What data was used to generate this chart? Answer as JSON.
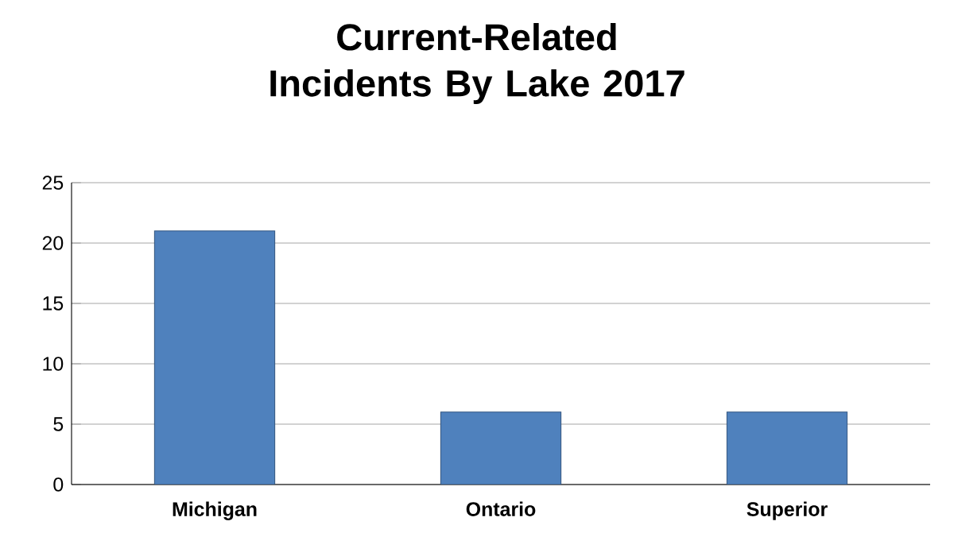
{
  "chart_data": {
    "type": "bar",
    "title": "Current-Related Incidents By Lake 2017",
    "categories": [
      "Michigan",
      "Ontario",
      "Superior"
    ],
    "values": [
      21,
      6,
      6
    ],
    "color": "#4f81bd",
    "ylim": [
      0,
      25
    ],
    "yticks": [
      0,
      5,
      10,
      15,
      20,
      25
    ],
    "grid": "y"
  }
}
